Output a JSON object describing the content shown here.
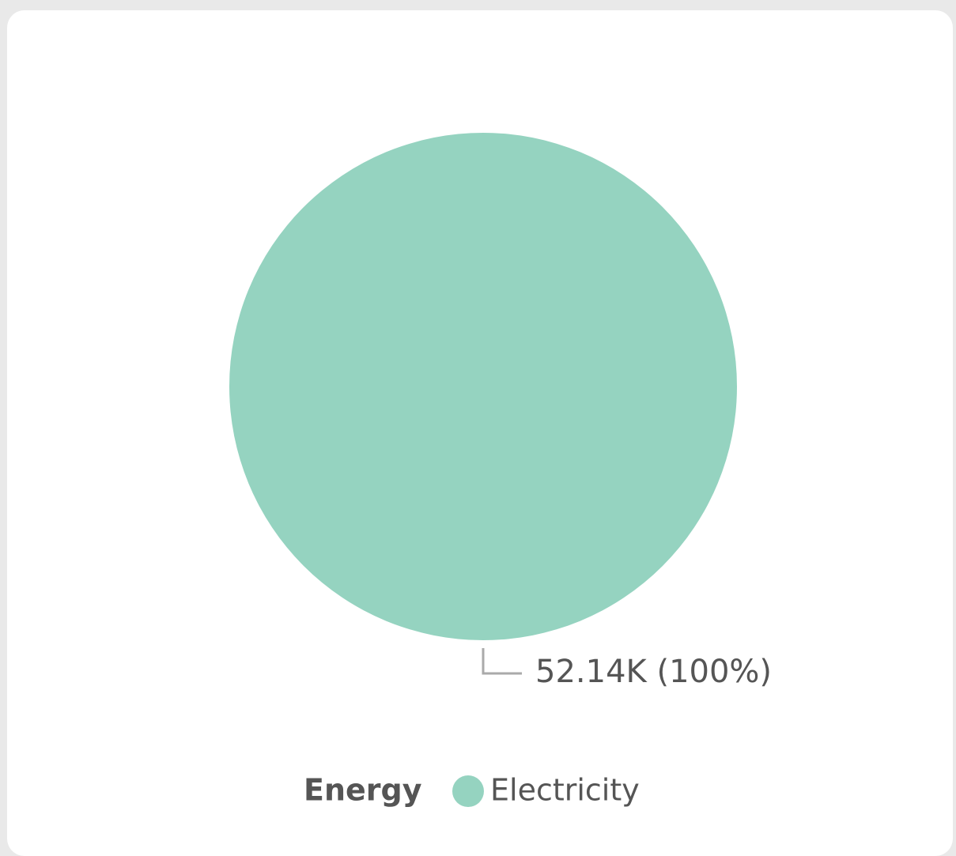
{
  "chart_data": {
    "type": "pie",
    "legend_title": "Energy",
    "categories": [
      "Electricity"
    ],
    "values": [
      52140
    ],
    "value_labels": [
      "52.14K (100%)"
    ],
    "colors": [
      "#95d3c0"
    ],
    "legend": "bottom"
  }
}
